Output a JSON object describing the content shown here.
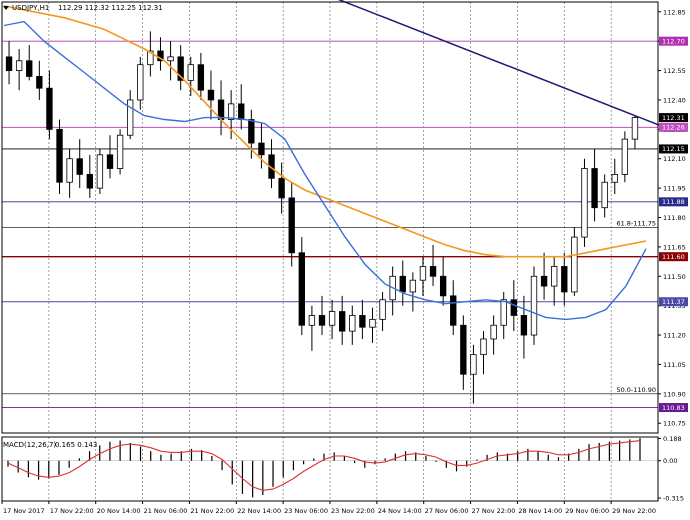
{
  "header": {
    "symbol": "USDJPY,H1",
    "ohlc": "112.29 112.32 112.25 112.31"
  },
  "macd_header": {
    "label": "MACD(12,26,7)",
    "values": "0.165 0.143"
  },
  "colors": {
    "background": "#ffffff",
    "candles": "#000000",
    "grid": "#000000",
    "ma_fast": "#3a6fd8",
    "ma_slow": "#f5981f",
    "trendline": "#1c1a78",
    "level_112_70": "#b030b0",
    "level_112_26": "#c050c0",
    "level_112_15": "#000000",
    "level_111_88": "#2a2a8a",
    "level_111_60": "#8b0000",
    "level_111_37": "#4a4aa8",
    "level_110_83": "#6a1a90",
    "macd_signal": "#e03030",
    "macd_hist": "#000000"
  },
  "chart_data": [
    {
      "type": "candlestick",
      "title": "USDJPY,H1",
      "ylim": [
        110.7,
        112.9
      ],
      "y_ticks": [
        "112.85",
        "112.70",
        "112.55",
        "112.40",
        "112.25",
        "112.10",
        "111.95",
        "111.80",
        "111.65",
        "111.50",
        "111.35",
        "111.20",
        "111.05",
        "110.90",
        "110.75"
      ],
      "x_tick_labels": [
        "17 Nov 2017",
        "17 Nov 22:00",
        "20 Nov 14:00",
        "21 Nov 06:00",
        "21 Nov 22:00",
        "22 Nov 14:00",
        "23 Nov 06:00",
        "23 Nov 22:00",
        "24 Nov 14:00",
        "27 Nov 06:00",
        "27 Nov 22:00",
        "28 Nov 14:00",
        "29 Nov 06:00",
        "29 Nov 22:00"
      ],
      "last_price": 112.31,
      "levels": [
        {
          "value": 112.7,
          "label": "112.70",
          "color": "#b030b0"
        },
        {
          "value": 112.26,
          "label": "112.26",
          "color": "#c050c0"
        },
        {
          "value": 112.15,
          "label": "112.15",
          "color": "#000000"
        },
        {
          "value": 111.88,
          "label": "111.88",
          "color": "#2a2a8a"
        },
        {
          "value": 111.6,
          "label": "111.60",
          "color": "#8b0000"
        },
        {
          "value": 111.37,
          "label": "111.37",
          "color": "#4a4aa8"
        },
        {
          "value": 110.83,
          "label": "110.83",
          "color": "#6a1a90"
        }
      ],
      "fib_levels": [
        {
          "value": 111.75,
          "label": "61.8-111.75"
        },
        {
          "value": 110.9,
          "label": "50.0-110.90"
        }
      ],
      "trendline": {
        "start": [
          0.0,
          112.93
        ],
        "end": [
          1.0,
          112.27
        ]
      },
      "ma_fast": [
        112.78,
        112.8,
        112.7,
        112.62,
        112.54,
        112.46,
        112.38,
        112.32,
        112.3,
        112.29,
        112.31,
        112.31,
        112.3,
        112.28,
        112.2,
        112.02,
        111.86,
        111.7,
        111.56,
        111.46,
        111.41,
        111.38,
        111.36,
        111.37,
        111.38,
        111.37,
        111.33,
        111.29,
        111.28,
        111.29,
        111.33,
        111.45,
        111.64
      ],
      "ma_slow": [
        112.88,
        112.86,
        112.84,
        112.82,
        112.79,
        112.76,
        112.71,
        112.66,
        112.6,
        112.5,
        112.39,
        112.28,
        112.18,
        112.08,
        112.0,
        111.94,
        111.9,
        111.86,
        111.82,
        111.78,
        111.74,
        111.7,
        111.66,
        111.63,
        111.61,
        111.6,
        111.6,
        111.6,
        111.6,
        111.62,
        111.64,
        111.66,
        111.68
      ],
      "candles": [
        [
          112.62,
          112.7,
          112.48,
          112.55
        ],
        [
          112.55,
          112.66,
          112.45,
          112.6
        ],
        [
          112.6,
          112.68,
          112.5,
          112.52
        ],
        [
          112.52,
          112.6,
          112.4,
          112.46
        ],
        [
          112.46,
          112.55,
          112.2,
          112.25
        ],
        [
          112.25,
          112.3,
          111.92,
          111.98
        ],
        [
          111.98,
          112.15,
          111.9,
          112.1
        ],
        [
          112.1,
          112.2,
          111.95,
          112.02
        ],
        [
          112.02,
          112.12,
          111.9,
          111.95
        ],
        [
          111.95,
          112.15,
          111.92,
          112.12
        ],
        [
          112.12,
          112.22,
          112.0,
          112.05
        ],
        [
          112.05,
          112.25,
          112.02,
          112.22
        ],
        [
          112.22,
          112.45,
          112.2,
          112.4
        ],
        [
          112.4,
          112.62,
          112.35,
          112.58
        ],
        [
          112.58,
          112.75,
          112.52,
          112.65
        ],
        [
          112.65,
          112.72,
          112.55,
          112.6
        ],
        [
          112.6,
          112.7,
          112.5,
          112.62
        ],
        [
          112.62,
          112.68,
          112.45,
          112.5
        ],
        [
          112.5,
          112.62,
          112.42,
          112.58
        ],
        [
          112.58,
          112.64,
          112.4,
          112.45
        ],
        [
          112.45,
          112.55,
          112.3,
          112.4
        ],
        [
          112.4,
          112.5,
          112.22,
          112.3
        ],
        [
          112.3,
          112.45,
          112.2,
          112.38
        ],
        [
          112.38,
          112.48,
          112.25,
          112.3
        ],
        [
          112.3,
          112.35,
          112.1,
          112.18
        ],
        [
          112.18,
          112.28,
          112.05,
          112.12
        ],
        [
          112.12,
          112.2,
          111.95,
          112.0
        ],
        [
          112.0,
          112.08,
          111.82,
          111.9
        ],
        [
          111.9,
          111.98,
          111.55,
          111.62
        ],
        [
          111.62,
          111.7,
          111.2,
          111.25
        ],
        [
          111.25,
          111.35,
          111.12,
          111.3
        ],
        [
          111.3,
          111.4,
          111.2,
          111.25
        ],
        [
          111.25,
          111.38,
          111.18,
          111.32
        ],
        [
          111.32,
          111.4,
          111.15,
          111.22
        ],
        [
          111.22,
          111.35,
          111.15,
          111.3
        ],
        [
          111.3,
          111.38,
          111.18,
          111.24
        ],
        [
          111.24,
          111.34,
          111.16,
          111.28
        ],
        [
          111.28,
          111.42,
          111.22,
          111.38
        ],
        [
          111.38,
          111.55,
          111.3,
          111.5
        ],
        [
          111.5,
          111.58,
          111.35,
          111.42
        ],
        [
          111.42,
          111.52,
          111.32,
          111.48
        ],
        [
          111.48,
          111.6,
          111.4,
          111.55
        ],
        [
          111.55,
          111.66,
          111.45,
          111.5
        ],
        [
          111.5,
          111.6,
          111.35,
          111.4
        ],
        [
          111.4,
          111.48,
          111.2,
          111.25
        ],
        [
          111.25,
          111.3,
          110.92,
          111.0
        ],
        [
          111.0,
          111.15,
          110.85,
          111.1
        ],
        [
          111.1,
          111.22,
          111.0,
          111.18
        ],
        [
          111.18,
          111.3,
          111.1,
          111.25
        ],
        [
          111.25,
          111.42,
          111.18,
          111.38
        ],
        [
          111.38,
          111.48,
          111.22,
          111.3
        ],
        [
          111.3,
          111.4,
          111.08,
          111.2
        ],
        [
          111.2,
          111.55,
          111.15,
          111.5
        ],
        [
          111.5,
          111.62,
          111.38,
          111.45
        ],
        [
          111.45,
          111.6,
          111.35,
          111.55
        ],
        [
          111.55,
          111.62,
          111.35,
          111.42
        ],
        [
          111.42,
          111.75,
          111.4,
          111.7
        ],
        [
          111.7,
          112.1,
          111.65,
          112.05
        ],
        [
          112.05,
          112.15,
          111.78,
          111.85
        ],
        [
          111.85,
          112.02,
          111.8,
          111.98
        ],
        [
          111.98,
          112.1,
          111.92,
          112.02
        ],
        [
          112.02,
          112.24,
          111.98,
          112.2
        ],
        [
          112.2,
          112.32,
          112.15,
          112.31
        ]
      ]
    },
    {
      "type": "macd",
      "title": "MACD(12,26,7)",
      "ylim": [
        -0.34,
        0.2
      ],
      "y_ticks": [
        "0.188",
        "0.00",
        "-0.315"
      ],
      "histogram": [
        -0.05,
        -0.1,
        -0.14,
        -0.16,
        -0.15,
        -0.12,
        -0.06,
        0.02,
        0.08,
        0.13,
        0.16,
        0.17,
        0.15,
        0.12,
        0.08,
        0.05,
        0.06,
        0.08,
        0.1,
        0.09,
        0.04,
        -0.08,
        -0.2,
        -0.28,
        -0.31,
        -0.29,
        -0.22,
        -0.14,
        -0.08,
        -0.03,
        0.02,
        0.06,
        0.07,
        0.04,
        -0.02,
        -0.06,
        -0.03,
        0.02,
        0.06,
        0.08,
        0.07,
        0.04,
        -0.01,
        -0.06,
        -0.09,
        -0.05,
        0.01,
        0.05,
        0.07,
        0.06,
        0.08,
        0.1,
        0.08,
        0.05,
        0.03,
        0.06,
        0.1,
        0.14,
        0.15,
        0.16,
        0.17,
        0.18,
        0.19
      ],
      "signal": [
        -0.02,
        -0.06,
        -0.1,
        -0.13,
        -0.14,
        -0.13,
        -0.1,
        -0.05,
        0.01,
        0.06,
        0.1,
        0.13,
        0.14,
        0.13,
        0.11,
        0.08,
        0.07,
        0.07,
        0.08,
        0.08,
        0.06,
        0.01,
        -0.07,
        -0.15,
        -0.22,
        -0.25,
        -0.24,
        -0.2,
        -0.15,
        -0.09,
        -0.04,
        0.01,
        0.04,
        0.04,
        0.02,
        -0.01,
        -0.02,
        -0.01,
        0.02,
        0.05,
        0.06,
        0.05,
        0.03,
        -0.01,
        -0.04,
        -0.04,
        -0.02,
        0.01,
        0.04,
        0.05,
        0.06,
        0.08,
        0.08,
        0.07,
        0.05,
        0.05,
        0.07,
        0.1,
        0.12,
        0.14,
        0.15,
        0.16,
        0.17
      ]
    }
  ]
}
